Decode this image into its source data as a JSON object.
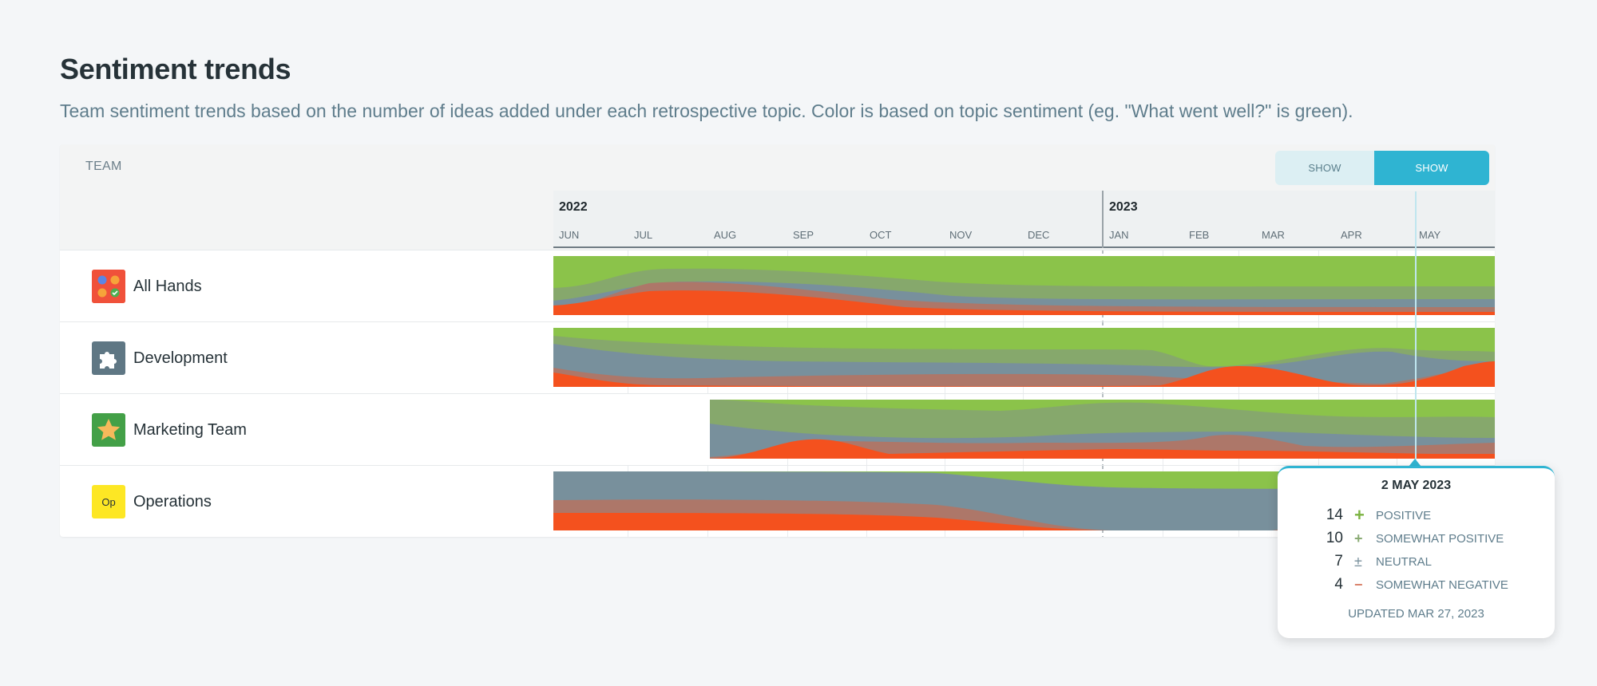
{
  "page": {
    "title": "Sentiment trends",
    "subtitle": "Team sentiment trends based on the number of ideas added under each retrospective topic. Color is based on topic sentiment (eg. \"What went well?\" is green)."
  },
  "table": {
    "team_header": "TEAM",
    "toggle": {
      "average_label": "SHOW AVERAGE",
      "breakdown_label": "SHOW BREAKDOWN",
      "selected": "breakdown"
    }
  },
  "timeline": {
    "years": [
      "2022",
      "2023"
    ],
    "months": [
      "JUN",
      "JUL",
      "AUG",
      "SEP",
      "OCT",
      "NOV",
      "DEC",
      "JAN",
      "FEB",
      "MAR",
      "APR",
      "MAY"
    ]
  },
  "teams": [
    {
      "name": "All Hands",
      "icon": "grid-emoji-icon"
    },
    {
      "name": "Development",
      "icon": "puzzle-icon"
    },
    {
      "name": "Marketing Team",
      "icon": "star-icon"
    },
    {
      "name": "Operations",
      "icon": "initials-icon",
      "initials": "Op"
    }
  ],
  "colors": {
    "positive": "#8bc34a",
    "somewhat_positive": "#86a86c",
    "neutral": "#78909c",
    "somewhat_negative": "#ad7769",
    "negative": "#f4511e",
    "accent": "#2fb4d2"
  },
  "tooltip": {
    "date": "2 MAY 2023",
    "rows": [
      {
        "count": "14",
        "sign": "+",
        "label": "POSITIVE",
        "color": "#7cb342"
      },
      {
        "count": "10",
        "sign": "+",
        "label": "SOMEWHAT POSITIVE",
        "color": "#8aab74"
      },
      {
        "count": "7",
        "sign": "±",
        "label": "NEUTRAL",
        "color": "#78909c"
      },
      {
        "count": "4",
        "sign": "−",
        "label": "SOMEWHAT NEGATIVE",
        "color": "#d9826b"
      }
    ],
    "updated": "UPDATED MAR 27, 2023"
  }
}
